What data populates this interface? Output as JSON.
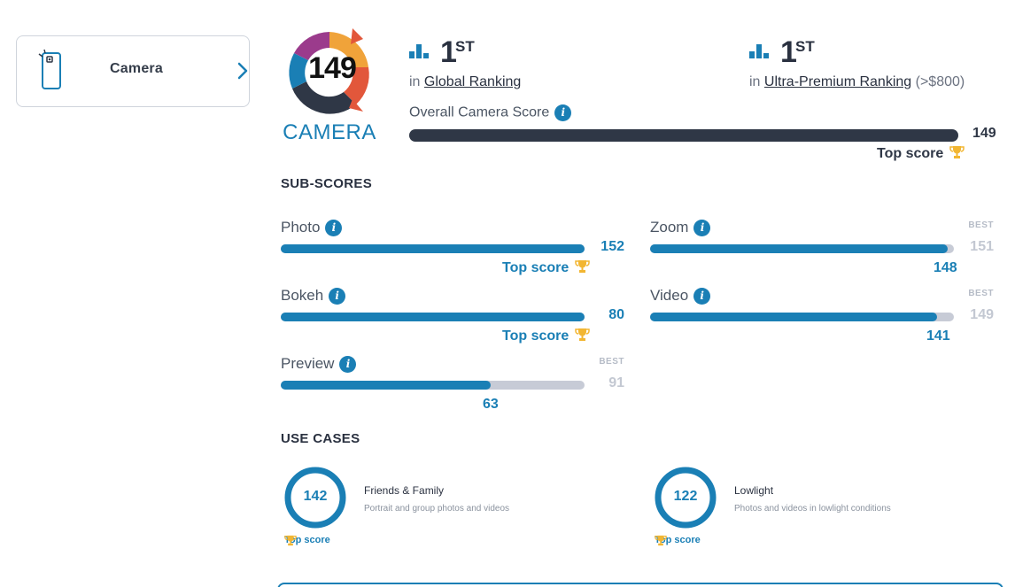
{
  "sidebar": {
    "card_label": "Camera",
    "icon": "phone-camera-icon",
    "chevron": "chevron-right-icon"
  },
  "badge": {
    "score": "149",
    "word": "CAMERA",
    "colors": [
      "#1a7fb5",
      "#e2573b",
      "#f0a33a",
      "#9b3b8c",
      "#2f3746"
    ]
  },
  "rankings": [
    {
      "rank": "1",
      "suffix": "ST",
      "prefix": "in",
      "link": "Global Ranking",
      "extra": ""
    },
    {
      "rank": "1",
      "suffix": "ST",
      "prefix": "in",
      "link": "Ultra-Premium Ranking",
      "extra": " (>$800)"
    }
  ],
  "overall": {
    "label": "Overall Camera Score",
    "value": "149",
    "fill_fraction": 1.0,
    "top_score_label": "Top score"
  },
  "subscores": {
    "title": "SUB-SCORES",
    "best_label": "BEST",
    "top_score_label": "Top score",
    "items": [
      {
        "name": "Photo",
        "value": "152",
        "best": "",
        "fraction": 1.0
      },
      {
        "name": "Zoom",
        "value": "148",
        "best": "151",
        "fraction": 0.98
      },
      {
        "name": "Bokeh",
        "value": "80",
        "best": "",
        "fraction": 1.0
      },
      {
        "name": "Video",
        "value": "141",
        "best": "149",
        "fraction": 0.946
      },
      {
        "name": "Preview",
        "value": "63",
        "best": "91",
        "fraction": 0.692
      }
    ]
  },
  "use_cases": {
    "title": "USE CASES",
    "top_score_label": "Top score",
    "items": [
      {
        "value": "142",
        "title": "Friends & Family",
        "desc": "Portrait and group photos and videos"
      },
      {
        "value": "122",
        "title": "Lowlight",
        "desc": "Photos and videos in lowlight conditions"
      }
    ]
  },
  "colors": {
    "accent": "#1a7fb5",
    "dark": "#2f3746",
    "track": "#c7cbd6",
    "trophy": "#f2b632"
  }
}
